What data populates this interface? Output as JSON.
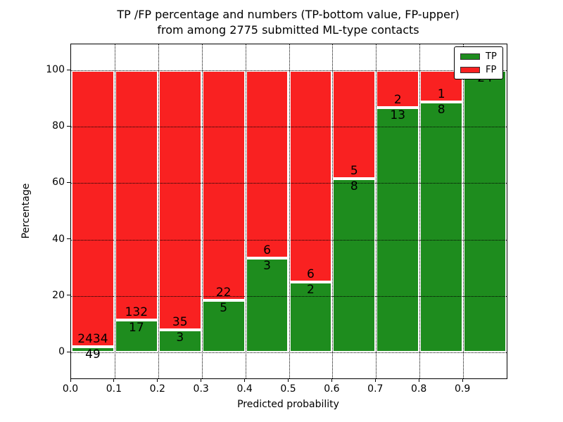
{
  "title": {
    "line1": "TP /FP percentage and numbers (TP-bottom value, FP-upper)",
    "line2": "from among 2775 submitted ML-type contacts"
  },
  "chart_data": {
    "type": "bar",
    "subtype": "stacked-percentage-histogram",
    "title": "TP /FP percentage and numbers (TP-bottom value, FP-upper) from among 2775 submitted ML-type contacts",
    "xlabel": "Predicted probability",
    "ylabel": "Percentage",
    "total_contacts": 2775,
    "x_tick_labels": [
      "0.0",
      "0.1",
      "0.2",
      "0.3",
      "0.4",
      "0.5",
      "0.6",
      "0.7",
      "0.8",
      "0.9"
    ],
    "y_ticks": [
      0,
      20,
      40,
      60,
      80,
      100
    ],
    "xlim": [
      0.0,
      1.0
    ],
    "ylim": [
      -9.2,
      109.2
    ],
    "grid": "dotted, both axes, drawn over bars",
    "bin_width": 0.1,
    "bins": [
      {
        "bin_start": 0.0,
        "tp": 49,
        "fp": 2434
      },
      {
        "bin_start": 0.1,
        "tp": 17,
        "fp": 132
      },
      {
        "bin_start": 0.2,
        "tp": 3,
        "fp": 35
      },
      {
        "bin_start": 0.3,
        "tp": 5,
        "fp": 22
      },
      {
        "bin_start": 0.4,
        "tp": 3,
        "fp": 6
      },
      {
        "bin_start": 0.5,
        "tp": 2,
        "fp": 6
      },
      {
        "bin_start": 0.6,
        "tp": 8,
        "fp": 5
      },
      {
        "bin_start": 0.7,
        "tp": 13,
        "fp": 2
      },
      {
        "bin_start": 0.8,
        "tp": 8,
        "fp": 1
      },
      {
        "bin_start": 0.9,
        "tp": 24,
        "fp": 0
      }
    ],
    "legend": {
      "position": "upper right",
      "entries": [
        {
          "label": "TP",
          "color": "#1e8c1e"
        },
        {
          "label": "FP",
          "color": "#f92121"
        }
      ]
    },
    "colors": {
      "tp": "#1e8c1e",
      "fp": "#f92121",
      "bar_edge": "#ffffff",
      "grid": "#000000",
      "background": "#ffffff"
    }
  }
}
